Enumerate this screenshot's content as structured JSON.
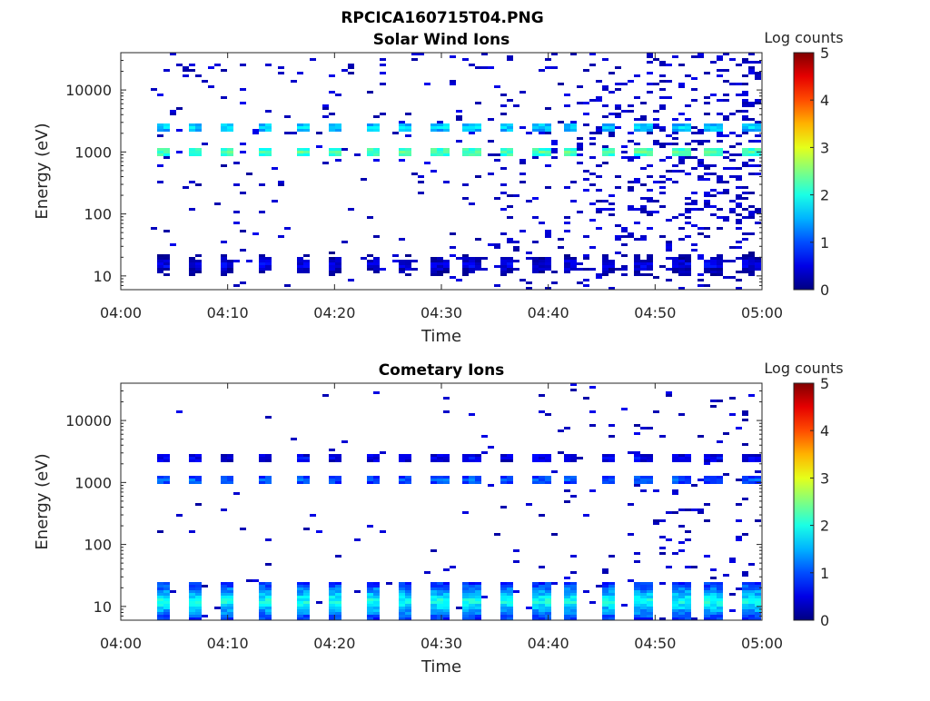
{
  "figure": {
    "title": "RPCICA160715T04.PNG"
  },
  "chart_data": [
    {
      "type": "heatmap",
      "title": "Solar Wind Ions",
      "xlabel": "Time",
      "ylabel": "Energy (eV)",
      "x_ticks": [
        "04:00",
        "04:10",
        "04:20",
        "04:30",
        "04:40",
        "04:50",
        "05:00"
      ],
      "x_range": [
        "04:00",
        "05:00"
      ],
      "y_scale": "log",
      "y_ticks": [
        "10",
        "100",
        "1000",
        "10000"
      ],
      "y_range": [
        6,
        40000
      ],
      "colorbar": {
        "label": "Log counts",
        "ticks": [
          "0",
          "1",
          "2",
          "3",
          "4",
          "5"
        ],
        "range": [
          0,
          5
        ],
        "colormap": "jet"
      },
      "grid": false,
      "sweep_times": [
        "04:04",
        "04:07",
        "04:10",
        "04:13.5",
        "04:17",
        "04:20",
        "04:23.5",
        "04:26.5",
        "04:30",
        "04:33",
        "04:36",
        "04:39.5",
        "04:42",
        "04:45.5",
        "04:49",
        "04:52.5",
        "04:55.5",
        "04:59"
      ],
      "bands": [
        {
          "energy_ev": 1000,
          "log_counts": 2.3
        },
        {
          "energy_ev": 2500,
          "log_counts": 1.7
        },
        {
          "energy_ev": 15,
          "log_counts": 0.6
        }
      ]
    },
    {
      "type": "heatmap",
      "title": "Cometary Ions",
      "xlabel": "Time",
      "ylabel": "Energy (eV)",
      "x_ticks": [
        "04:00",
        "04:10",
        "04:20",
        "04:30",
        "04:40",
        "04:50",
        "05:00"
      ],
      "x_range": [
        "04:00",
        "05:00"
      ],
      "y_scale": "log",
      "y_ticks": [
        "10",
        "100",
        "1000",
        "10000"
      ],
      "y_range": [
        6,
        40000
      ],
      "colorbar": {
        "label": "Log counts",
        "ticks": [
          "0",
          "1",
          "2",
          "3",
          "4",
          "5"
        ],
        "range": [
          0,
          5
        ],
        "colormap": "jet"
      },
      "grid": false,
      "sweep_times": [
        "04:04",
        "04:07",
        "04:10",
        "04:13.5",
        "04:17",
        "04:20",
        "04:23.5",
        "04:26.5",
        "04:30",
        "04:33",
        "04:36",
        "04:39.5",
        "04:42",
        "04:45.5",
        "04:49",
        "04:52.5",
        "04:55.5",
        "04:59"
      ],
      "bands": [
        {
          "energy_ev": 12,
          "log_counts": 2.0
        },
        {
          "energy_ev": 1100,
          "log_counts": 1.1
        },
        {
          "energy_ev": 2500,
          "log_counts": 0.6
        }
      ]
    }
  ]
}
